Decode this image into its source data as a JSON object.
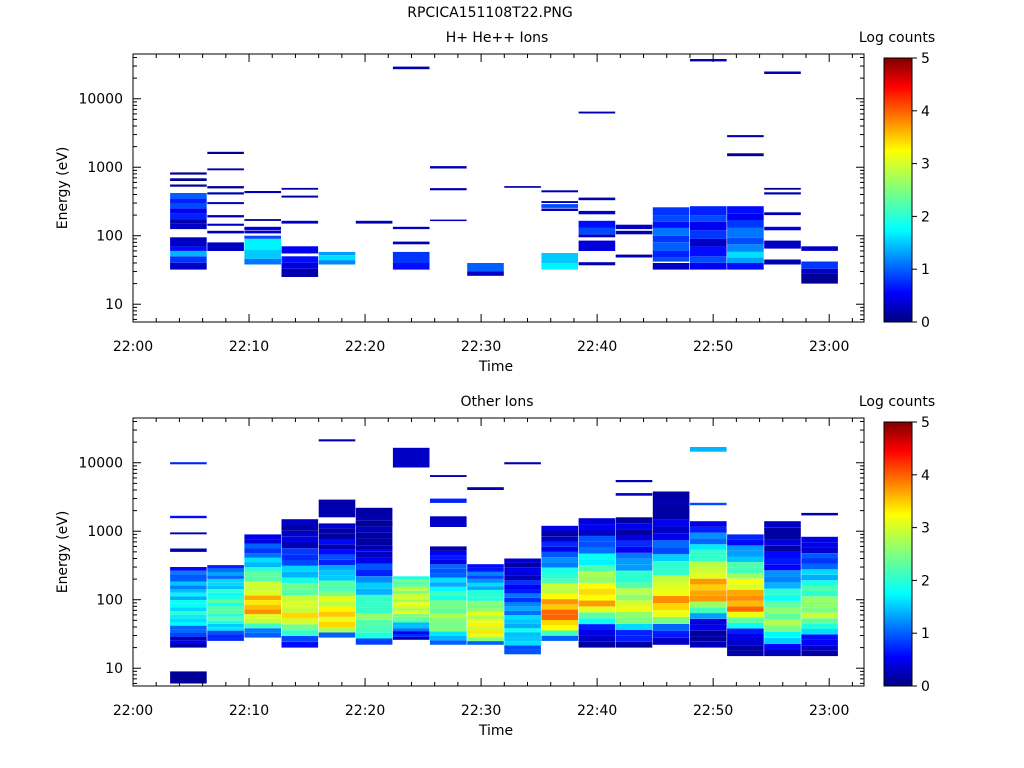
{
  "page": {
    "title": "RPCICA151108T22.PNG"
  },
  "chart_data": [
    {
      "type": "heatmap",
      "title": "H+ He++ Ions",
      "xlabel": "Time",
      "ylabel": "Energy (eV)",
      "y_scale": "log",
      "ylim": [
        5.5,
        45000
      ],
      "xlim": [
        "22:00",
        "23:03"
      ],
      "x_ticks": [
        "22:00",
        "22:10",
        "22:20",
        "22:30",
        "22:40",
        "22:50",
        "23:00"
      ],
      "y_ticks": [
        "10",
        "100",
        "1000",
        "10000"
      ],
      "colorbar": {
        "label": "Log counts",
        "range": [
          0,
          5
        ],
        "ticks": [
          "0",
          "1",
          "2",
          "3",
          "4",
          "5"
        ]
      },
      "time_bins": [
        "22:03:12",
        "22:06:24",
        "22:09:36",
        "22:12:48",
        "22:16:00",
        "22:19:12",
        "22:22:24",
        "22:25:36",
        "22:28:48",
        "22:32:00",
        "22:35:12",
        "22:38:24",
        "22:41:36",
        "22:44:48",
        "22:48:00",
        "22:51:12",
        "22:54:24",
        "22:57:36",
        "23:00:48"
      ],
      "cells": [
        {
          "t": 0,
          "e": [
            32,
            40
          ],
          "v": 0.3
        },
        {
          "t": 0,
          "e": [
            40,
            50
          ],
          "v": 0.8
        },
        {
          "t": 0,
          "e": [
            50,
            60
          ],
          "v": 1.4
        },
        {
          "t": 0,
          "e": [
            60,
            70
          ],
          "v": 0.6
        },
        {
          "t": 0,
          "e": [
            70,
            95
          ],
          "v": 0.3
        },
        {
          "t": 0,
          "e": [
            125,
            150
          ],
          "v": 0.3
        },
        {
          "t": 0,
          "e": [
            150,
            175
          ],
          "v": 0.2
        },
        {
          "t": 0,
          "e": [
            175,
            210
          ],
          "v": 0.7
        },
        {
          "t": 0,
          "e": [
            210,
            250
          ],
          "v": 0.5
        },
        {
          "t": 0,
          "e": [
            250,
            300
          ],
          "v": 0.9
        },
        {
          "t": 0,
          "e": [
            300,
            350
          ],
          "v": 0.7
        },
        {
          "t": 0,
          "e": [
            350,
            420
          ],
          "v": 1.0
        },
        {
          "t": 0,
          "e": [
            520,
            560
          ],
          "v": 0.1
        },
        {
          "t": 0,
          "e": [
            630,
            690
          ],
          "v": 0.1
        },
        {
          "t": 0,
          "e": [
            780,
            840
          ],
          "v": 0.1
        },
        {
          "t": 1,
          "e": [
            60,
            80
          ],
          "v": 0.3
        },
        {
          "t": 1,
          "e": [
            108,
            118
          ],
          "v": 0.2
        },
        {
          "t": 1,
          "e": [
            140,
            150
          ],
          "v": 0.3
        },
        {
          "t": 1,
          "e": [
            185,
            200
          ],
          "v": 0.2
        },
        {
          "t": 1,
          "e": [
            290,
            310
          ],
          "v": 0.3
        },
        {
          "t": 1,
          "e": [
            400,
            430
          ],
          "v": 0.2
        },
        {
          "t": 1,
          "e": [
            490,
            530
          ],
          "v": 0.1
        },
        {
          "t": 1,
          "e": [
            900,
            960
          ],
          "v": 0.2
        },
        {
          "t": 1,
          "e": [
            1560,
            1680
          ],
          "v": 0.1
        },
        {
          "t": 2,
          "e": [
            38,
            46
          ],
          "v": 1.1
        },
        {
          "t": 2,
          "e": [
            46,
            62
          ],
          "v": 1.5
        },
        {
          "t": 2,
          "e": [
            62,
            90
          ],
          "v": 1.7
        },
        {
          "t": 2,
          "e": [
            90,
            100
          ],
          "v": 0.9
        },
        {
          "t": 2,
          "e": [
            108,
            118
          ],
          "v": 0.3
        },
        {
          "t": 2,
          "e": [
            120,
            135
          ],
          "v": 0.4
        },
        {
          "t": 2,
          "e": [
            165,
            175
          ],
          "v": 0.1
        },
        {
          "t": 2,
          "e": [
            420,
            450
          ],
          "v": 0.2
        },
        {
          "t": 3,
          "e": [
            25,
            33
          ],
          "v": 0.2
        },
        {
          "t": 3,
          "e": [
            33,
            40
          ],
          "v": 0.4
        },
        {
          "t": 3,
          "e": [
            40,
            50
          ],
          "v": 0.6
        },
        {
          "t": 3,
          "e": [
            55,
            70
          ],
          "v": 0.5
        },
        {
          "t": 3,
          "e": [
            150,
            165
          ],
          "v": 0.3
        },
        {
          "t": 3,
          "e": [
            360,
            385
          ],
          "v": 0.2
        },
        {
          "t": 3,
          "e": [
            470,
            500
          ],
          "v": 0.2
        },
        {
          "t": 4,
          "e": [
            38,
            44
          ],
          "v": 1.2
        },
        {
          "t": 4,
          "e": [
            44,
            52
          ],
          "v": 1.6
        },
        {
          "t": 4,
          "e": [
            52,
            58
          ],
          "v": 1.3
        },
        {
          "t": 5,
          "e": [
            150,
            165
          ],
          "v": 0.2
        },
        {
          "t": 6,
          "e": [
            32,
            40
          ],
          "v": 0.6
        },
        {
          "t": 6,
          "e": [
            40,
            58
          ],
          "v": 0.8
        },
        {
          "t": 6,
          "e": [
            75,
            82
          ],
          "v": 0.2
        },
        {
          "t": 6,
          "e": [
            125,
            135
          ],
          "v": 0.3
        },
        {
          "t": 6,
          "e": [
            27000,
            29500
          ],
          "v": 0.2
        },
        {
          "t": 7,
          "e": [
            165,
            172
          ],
          "v": 0.3
        },
        {
          "t": 7,
          "e": [
            460,
            495
          ],
          "v": 0.2
        },
        {
          "t": 7,
          "e": [
            960,
            1040
          ],
          "v": 0.2
        },
        {
          "t": 8,
          "e": [
            26,
            30
          ],
          "v": 0.3
        },
        {
          "t": 8,
          "e": [
            30,
            40
          ],
          "v": 1.0
        },
        {
          "t": 9,
          "e": [
            500,
            530
          ],
          "v": 0.2
        },
        {
          "t": 10,
          "e": [
            32,
            40
          ],
          "v": 1.7
        },
        {
          "t": 10,
          "e": [
            40,
            56
          ],
          "v": 1.5
        },
        {
          "t": 10,
          "e": [
            230,
            250
          ],
          "v": 0.3
        },
        {
          "t": 10,
          "e": [
            255,
            290
          ],
          "v": 0.9
        },
        {
          "t": 10,
          "e": [
            300,
            320
          ],
          "v": 0.2
        },
        {
          "t": 10,
          "e": [
            430,
            460
          ],
          "v": 0.2
        },
        {
          "t": 11,
          "e": [
            37,
            41
          ],
          "v": 0.2
        },
        {
          "t": 11,
          "e": [
            60,
            85
          ],
          "v": 0.4
        },
        {
          "t": 11,
          "e": [
            95,
            105
          ],
          "v": 0.3
        },
        {
          "t": 11,
          "e": [
            105,
            130
          ],
          "v": 0.9
        },
        {
          "t": 11,
          "e": [
            130,
            165
          ],
          "v": 0.6
        },
        {
          "t": 11,
          "e": [
            205,
            230
          ],
          "v": 0.3
        },
        {
          "t": 11,
          "e": [
            330,
            360
          ],
          "v": 0.2
        },
        {
          "t": 11,
          "e": [
            6100,
            6500
          ],
          "v": 0.2
        },
        {
          "t": 12,
          "e": [
            48,
            53
          ],
          "v": 0.2
        },
        {
          "t": 12,
          "e": [
            105,
            118
          ],
          "v": 0.2
        },
        {
          "t": 12,
          "e": [
            125,
            145
          ],
          "v": 0.3
        },
        {
          "t": 13,
          "e": [
            32,
            40
          ],
          "v": 0.3
        },
        {
          "t": 13,
          "e": [
            42,
            48
          ],
          "v": 0.9
        },
        {
          "t": 13,
          "e": [
            48,
            60
          ],
          "v": 0.7
        },
        {
          "t": 13,
          "e": [
            60,
            80
          ],
          "v": 1.0
        },
        {
          "t": 13,
          "e": [
            80,
            100
          ],
          "v": 0.8
        },
        {
          "t": 13,
          "e": [
            100,
            130
          ],
          "v": 1.1
        },
        {
          "t": 13,
          "e": [
            130,
            160
          ],
          "v": 0.6
        },
        {
          "t": 13,
          "e": [
            160,
            200
          ],
          "v": 0.9
        },
        {
          "t": 13,
          "e": [
            200,
            260
          ],
          "v": 0.8
        },
        {
          "t": 14,
          "e": [
            32,
            40
          ],
          "v": 0.5
        },
        {
          "t": 14,
          "e": [
            40,
            50
          ],
          "v": 0.9
        },
        {
          "t": 14,
          "e": [
            50,
            70
          ],
          "v": 0.6
        },
        {
          "t": 14,
          "e": [
            70,
            90
          ],
          "v": 0.3
        },
        {
          "t": 14,
          "e": [
            90,
            120
          ],
          "v": 0.8
        },
        {
          "t": 14,
          "e": [
            120,
            160
          ],
          "v": 0.5
        },
        {
          "t": 14,
          "e": [
            160,
            200
          ],
          "v": 0.9
        },
        {
          "t": 14,
          "e": [
            200,
            270
          ],
          "v": 0.7
        },
        {
          "t": 14,
          "e": [
            35000,
            38000
          ],
          "v": 0.2
        },
        {
          "t": 15,
          "e": [
            32,
            40
          ],
          "v": 0.6
        },
        {
          "t": 15,
          "e": [
            40,
            48
          ],
          "v": 1.3
        },
        {
          "t": 15,
          "e": [
            48,
            58
          ],
          "v": 1.6
        },
        {
          "t": 15,
          "e": [
            58,
            75
          ],
          "v": 1.2
        },
        {
          "t": 15,
          "e": [
            75,
            95
          ],
          "v": 0.9
        },
        {
          "t": 15,
          "e": [
            95,
            130
          ],
          "v": 1.1
        },
        {
          "t": 15,
          "e": [
            130,
            170
          ],
          "v": 0.8
        },
        {
          "t": 15,
          "e": [
            170,
            210
          ],
          "v": 0.5
        },
        {
          "t": 15,
          "e": [
            210,
            270
          ],
          "v": 0.6
        },
        {
          "t": 15,
          "e": [
            1450,
            1600
          ],
          "v": 0.1
        },
        {
          "t": 15,
          "e": [
            2750,
            2950
          ],
          "v": 0.2
        },
        {
          "t": 16,
          "e": [
            38,
            45
          ],
          "v": 0.2
        },
        {
          "t": 16,
          "e": [
            65,
            85
          ],
          "v": 0.3
        },
        {
          "t": 16,
          "e": [
            120,
            135
          ],
          "v": 0.4
        },
        {
          "t": 16,
          "e": [
            200,
            220
          ],
          "v": 0.2
        },
        {
          "t": 16,
          "e": [
            400,
            430
          ],
          "v": 0.2
        },
        {
          "t": 16,
          "e": [
            470,
            500
          ],
          "v": 0.1
        },
        {
          "t": 16,
          "e": [
            23000,
            25000
          ],
          "v": 0.2
        },
        {
          "t": 17,
          "e": [
            20,
            28
          ],
          "v": 0.1
        },
        {
          "t": 17,
          "e": [
            28,
            33
          ],
          "v": 0.3
        },
        {
          "t": 17,
          "e": [
            33,
            42
          ],
          "v": 0.8
        },
        {
          "t": 17,
          "e": [
            60,
            70
          ],
          "v": 0.3
        }
      ]
    },
    {
      "type": "heatmap",
      "title": "Other Ions",
      "xlabel": "Time",
      "ylabel": "Energy (eV)",
      "y_scale": "log",
      "ylim": [
        5.5,
        45000
      ],
      "xlim": [
        "22:00",
        "23:03"
      ],
      "x_ticks": [
        "22:00",
        "22:10",
        "22:20",
        "22:30",
        "22:40",
        "22:50",
        "23:00"
      ],
      "y_ticks": [
        "10",
        "100",
        "1000",
        "10000"
      ],
      "colorbar": {
        "label": "Log counts",
        "range": [
          0,
          5
        ],
        "ticks": [
          "0",
          "1",
          "2",
          "3",
          "4",
          "5"
        ]
      },
      "columns": [
        {
          "t": 0,
          "lo": 20,
          "hi": 300,
          "peak": 1.8,
          "peakE": 60,
          "extra": [
            [
              6,
              9,
              0.1
            ],
            [
              500,
              560,
              0.2
            ],
            [
              900,
              960,
              0.2
            ],
            [
              1550,
              1680,
              0.6
            ],
            [
              9500,
              10200,
              0.7
            ]
          ]
        },
        {
          "t": 1,
          "lo": 25,
          "hi": 320,
          "peak": 2.2,
          "peakE": 60,
          "extra": []
        },
        {
          "t": 2,
          "lo": 28,
          "hi": 900,
          "peak": 3.6,
          "peakE": 70,
          "extra": []
        },
        {
          "t": 3,
          "lo": 20,
          "hi": 1500,
          "peak": 3.2,
          "peakE": 55,
          "extra": []
        },
        {
          "t": 4,
          "lo": 28,
          "hi": 1300,
          "peak": 3.4,
          "peakE": 50,
          "extra": [
            [
              1600,
              2900,
              0.2
            ],
            [
              20500,
              22000,
              0.2
            ]
          ]
        },
        {
          "t": 5,
          "lo": 22,
          "hi": 2200,
          "peak": 2.4,
          "peakE": 45,
          "extra": [
            [
              1200,
              1400,
              0.1
            ],
            [
              550,
              600,
              0.1
            ]
          ]
        },
        {
          "t": 6,
          "lo": 26,
          "hi": 220,
          "peak": 3.0,
          "peakE": 75,
          "extra": [
            [
              8500,
              16500,
              0.3
            ]
          ]
        },
        {
          "t": 7,
          "lo": 22,
          "hi": 600,
          "peak": 2.6,
          "peakE": 48,
          "extra": [
            [
              1150,
              1650,
              0.3
            ],
            [
              2600,
              3000,
              0.7
            ],
            [
              6200,
              6600,
              0.2
            ]
          ]
        },
        {
          "t": 8,
          "lo": 22,
          "hi": 330,
          "peak": 3.2,
          "peakE": 35,
          "extra": [
            [
              4000,
              4400,
              0.2
            ]
          ]
        },
        {
          "t": 9,
          "lo": 16,
          "hi": 400,
          "peak": 1.6,
          "peakE": 30,
          "extra": [
            [
              9500,
              10200,
              0.2
            ]
          ]
        },
        {
          "t": 10,
          "lo": 25,
          "hi": 1200,
          "peak": 3.9,
          "peakE": 55,
          "extra": []
        },
        {
          "t": 11,
          "lo": 20,
          "hi": 1550,
          "peak": 3.5,
          "peakE": 90,
          "extra": []
        },
        {
          "t": 12,
          "lo": 20,
          "hi": 1600,
          "peak": 3.0,
          "peakE": 70,
          "extra": [
            [
              3300,
              3600,
              0.3
            ],
            [
              5200,
              5600,
              0.2
            ]
          ]
        },
        {
          "t": 13,
          "lo": 22,
          "hi": 3800,
          "peak": 3.6,
          "peakE": 80,
          "extra": []
        },
        {
          "t": 14,
          "lo": 20,
          "hi": 1400,
          "peak": 3.7,
          "peakE": 120,
          "extra": [
            [
              2400,
              2600,
              0.9
            ],
            [
              14500,
              17000,
              1.4
            ]
          ]
        },
        {
          "t": 15,
          "lo": 15,
          "hi": 900,
          "peak": 3.8,
          "peakE": 80,
          "extra": []
        },
        {
          "t": 16,
          "lo": 15,
          "hi": 1400,
          "peak": 2.6,
          "peakE": 45,
          "extra": []
        },
        {
          "t": 17,
          "lo": 15,
          "hi": 830,
          "peak": 2.7,
          "peakE": 60,
          "extra": [
            [
              1700,
              1850,
              0.2
            ]
          ]
        }
      ]
    }
  ]
}
